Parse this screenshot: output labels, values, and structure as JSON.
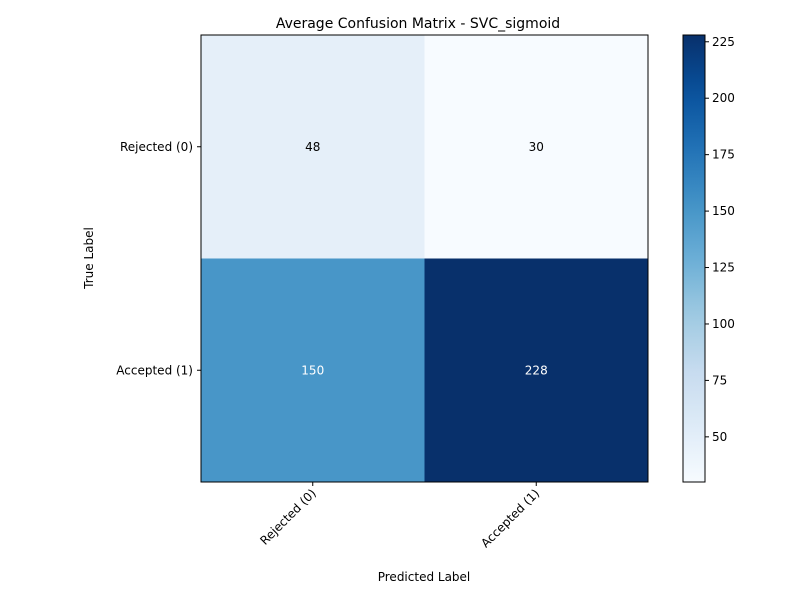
{
  "chart_data": {
    "type": "heatmap",
    "title": "Average Confusion Matrix - SVC_sigmoid",
    "xlabel": "Predicted Label",
    "ylabel": "True Label",
    "x_categories": [
      "Rejected (0)",
      "Accepted (1)"
    ],
    "y_categories": [
      "Rejected (0)",
      "Accepted (1)"
    ],
    "values": [
      [
        48,
        30
      ],
      [
        150,
        228
      ]
    ],
    "colormap": "Blues",
    "color_range": [
      30,
      228
    ],
    "colorbar_ticks": [
      50,
      75,
      100,
      125,
      150,
      175,
      200,
      225
    ],
    "grid": false
  }
}
